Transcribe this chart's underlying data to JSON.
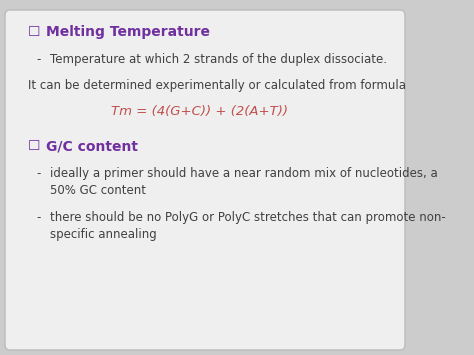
{
  "background_color": "#cccccc",
  "card_color": "#efefef",
  "heading1": "Melting Temperature",
  "heading1_color": "#7030a0",
  "heading2": "G/C content",
  "heading2_color": "#7030a0",
  "checkbox_color": "#7030a0",
  "bullet1": "Temperature at which 2 strands of the duplex dissociate.",
  "text_intro": "It can be determined experimentally or calculated from formula",
  "formula": "Tm = (4(G+C)) + (2(A+T))",
  "formula_color": "#c0504d",
  "bullet2a": "ideally a primer should have a near random mix of nucleotides, a\n50% GC content",
  "bullet2b": "there should be no PolyG or PolyC stretches that can promote non-\nspecific annealing",
  "text_color": "#404040",
  "body_fontsize": 8.5,
  "heading_fontsize": 10
}
